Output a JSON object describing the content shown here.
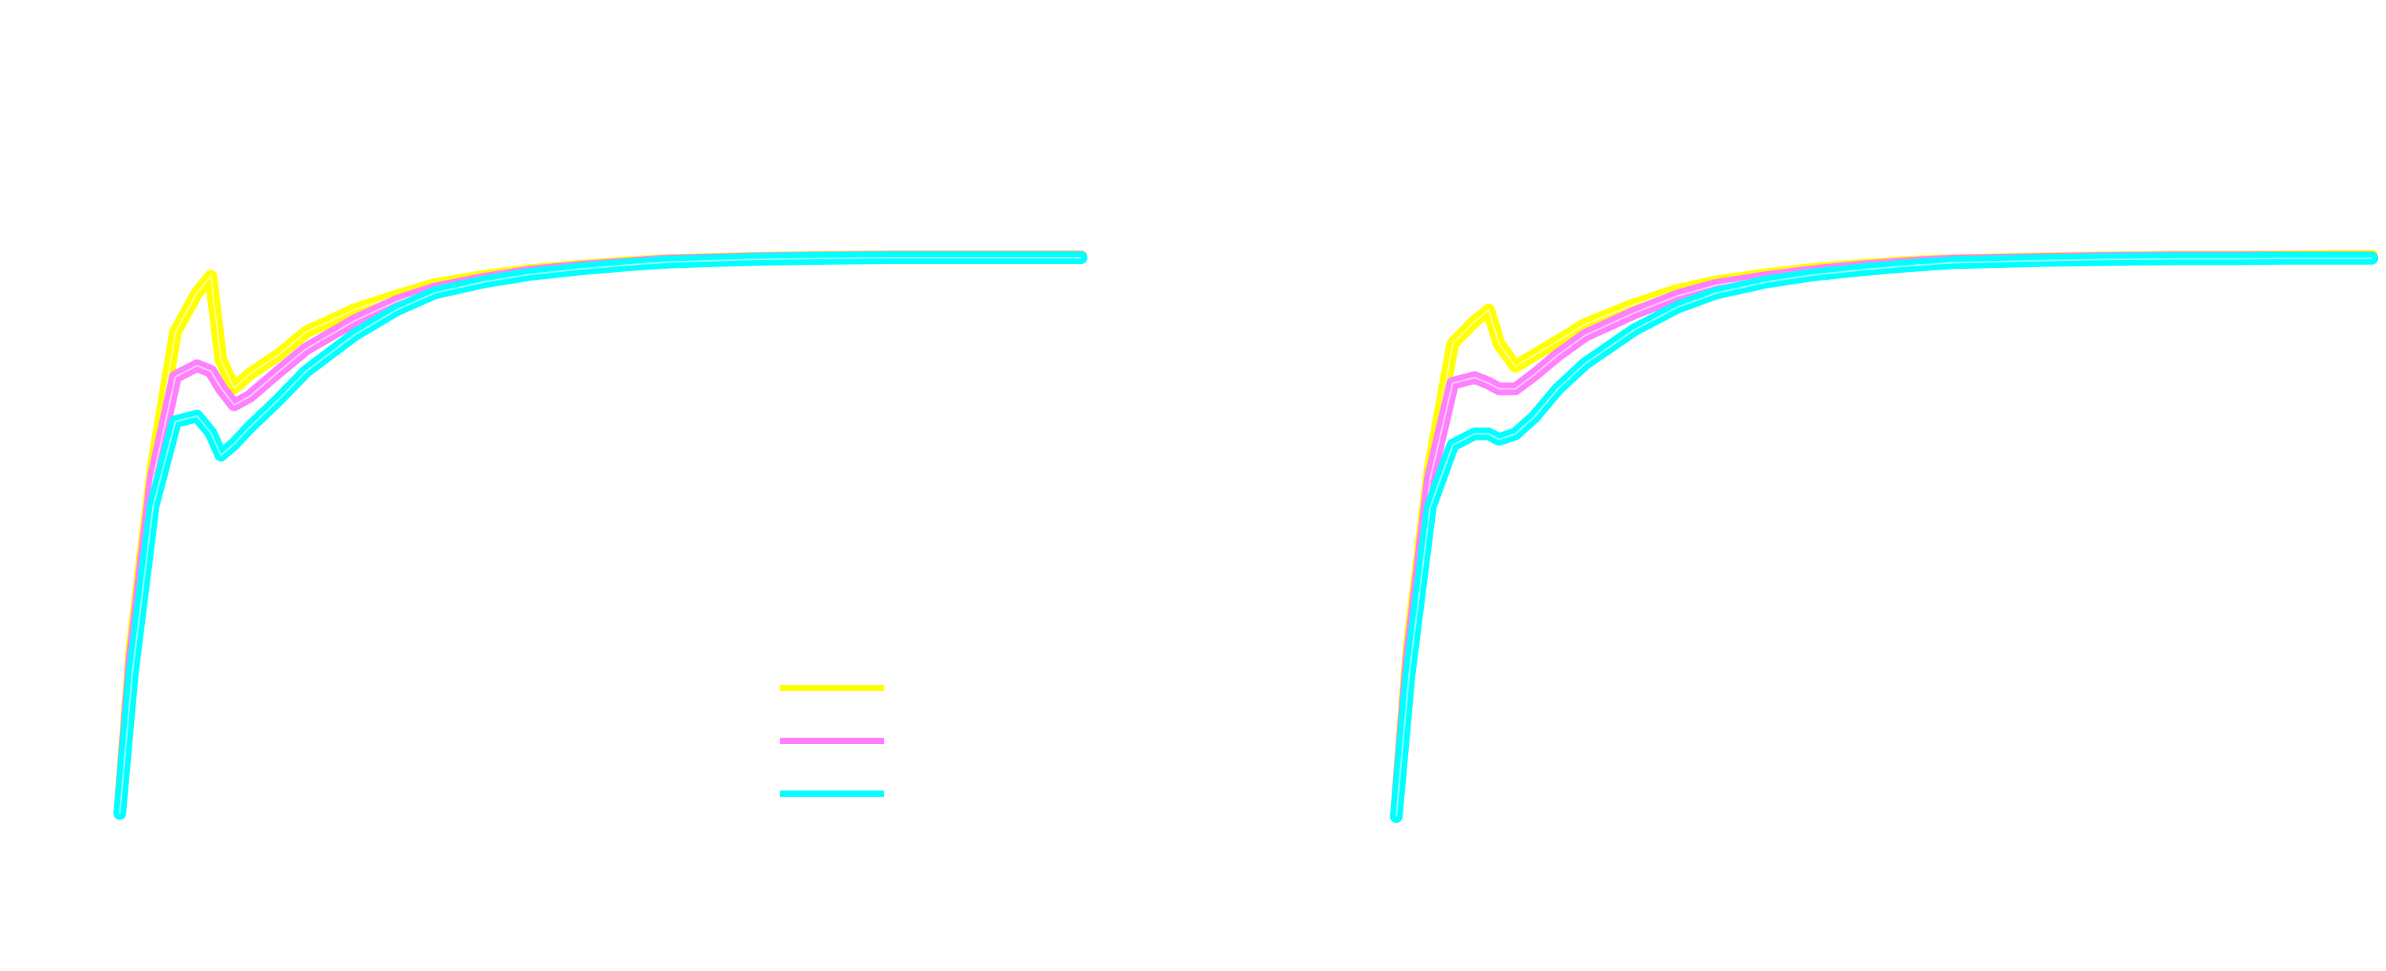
{
  "chart_data": [
    {
      "type": "line",
      "title": "",
      "xlabel": "",
      "ylabel": "",
      "grid": false,
      "legend": {
        "position": "bottom-right",
        "entries": [
          "",
          "",
          ""
        ]
      },
      "xlim": [
        0,
        100
      ],
      "ylim": [
        0,
        1
      ],
      "series": [
        {
          "color": "#ffff00",
          "line_width": 4,
          "x": [
            0,
            0.6,
            1.2,
            1.8,
            2.4,
            2.8,
            3.1,
            3.5,
            4.0,
            5,
            6,
            8,
            10,
            12,
            15,
            18,
            22,
            26,
            30,
            40,
            50,
            60,
            70,
            80,
            90,
            100
          ],
          "y": [
            0.0,
            0.3,
            0.62,
            0.86,
            0.93,
            0.96,
            0.81,
            0.76,
            0.785,
            0.82,
            0.86,
            0.9,
            0.925,
            0.945,
            0.96,
            0.97,
            0.978,
            0.984,
            0.988,
            0.992,
            0.994,
            0.995,
            0.995,
            0.995,
            0.995,
            0.995
          ]
        },
        {
          "color": "#ff80ff",
          "line_width": 4,
          "x": [
            0,
            0.6,
            1.2,
            1.8,
            2.4,
            2.8,
            3.1,
            3.5,
            4.0,
            5,
            6,
            8,
            10,
            12,
            15,
            18,
            22,
            26,
            30,
            40,
            50,
            60,
            70,
            80,
            90,
            100
          ],
          "y": [
            0.0,
            0.28,
            0.6,
            0.78,
            0.8,
            0.79,
            0.76,
            0.73,
            0.745,
            0.79,
            0.83,
            0.88,
            0.915,
            0.937,
            0.955,
            0.967,
            0.976,
            0.982,
            0.987,
            0.991,
            0.993,
            0.994,
            0.994,
            0.994,
            0.994,
            0.994
          ]
        },
        {
          "color": "#00ffff",
          "line_width": 4,
          "x": [
            0,
            0.6,
            1.2,
            1.8,
            2.4,
            2.8,
            3.1,
            3.5,
            4.0,
            5,
            6,
            8,
            10,
            12,
            15,
            18,
            22,
            26,
            30,
            40,
            50,
            60,
            70,
            80,
            90,
            100
          ],
          "y": [
            0.0,
            0.25,
            0.55,
            0.7,
            0.71,
            0.68,
            0.64,
            0.66,
            0.69,
            0.74,
            0.79,
            0.855,
            0.9,
            0.93,
            0.95,
            0.963,
            0.973,
            0.98,
            0.985,
            0.99,
            0.992,
            0.993,
            0.993,
            0.993,
            0.993,
            0.993
          ]
        }
      ]
    },
    {
      "type": "line",
      "title": "",
      "xlabel": "",
      "ylabel": "",
      "grid": false,
      "xlim": [
        0,
        100
      ],
      "ylim": [
        0,
        1
      ],
      "series": [
        {
          "color": "#ffff00",
          "line_width": 4,
          "x": [
            0,
            0.6,
            1.2,
            1.8,
            2.4,
            2.8,
            3.1,
            3.6,
            4.2,
            5,
            6,
            8,
            10,
            12,
            15,
            18,
            22,
            26,
            30,
            40,
            50,
            60,
            70,
            80,
            90,
            100
          ],
          "y": [
            0.0,
            0.3,
            0.62,
            0.84,
            0.88,
            0.9,
            0.84,
            0.8,
            0.82,
            0.845,
            0.875,
            0.91,
            0.935,
            0.95,
            0.963,
            0.972,
            0.98,
            0.985,
            0.988,
            0.991,
            0.993,
            0.994,
            0.994,
            0.995,
            0.996,
            0.996
          ]
        },
        {
          "color": "#ff80ff",
          "line_width": 4,
          "x": [
            0,
            0.6,
            1.2,
            1.8,
            2.4,
            2.8,
            3.1,
            3.6,
            4.2,
            5,
            6,
            8,
            10,
            12,
            15,
            18,
            22,
            26,
            30,
            40,
            50,
            60,
            70,
            80,
            90,
            100
          ],
          "y": [
            0.0,
            0.28,
            0.6,
            0.77,
            0.78,
            0.77,
            0.76,
            0.76,
            0.785,
            0.82,
            0.855,
            0.895,
            0.925,
            0.944,
            0.958,
            0.968,
            0.977,
            0.983,
            0.987,
            0.99,
            0.992,
            0.993,
            0.993,
            0.993,
            0.993,
            0.993
          ]
        },
        {
          "color": "#00ffff",
          "line_width": 4,
          "x": [
            0,
            0.6,
            1.2,
            1.8,
            2.4,
            2.8,
            3.1,
            3.6,
            4.2,
            5,
            6,
            8,
            10,
            12,
            15,
            18,
            22,
            26,
            30,
            40,
            50,
            60,
            70,
            80,
            90,
            100
          ],
          "y": [
            0.0,
            0.25,
            0.55,
            0.66,
            0.68,
            0.68,
            0.67,
            0.68,
            0.71,
            0.76,
            0.805,
            0.865,
            0.905,
            0.93,
            0.95,
            0.962,
            0.972,
            0.979,
            0.984,
            0.988,
            0.99,
            0.991,
            0.991,
            0.992,
            0.992,
            0.992
          ]
        }
      ]
    }
  ]
}
